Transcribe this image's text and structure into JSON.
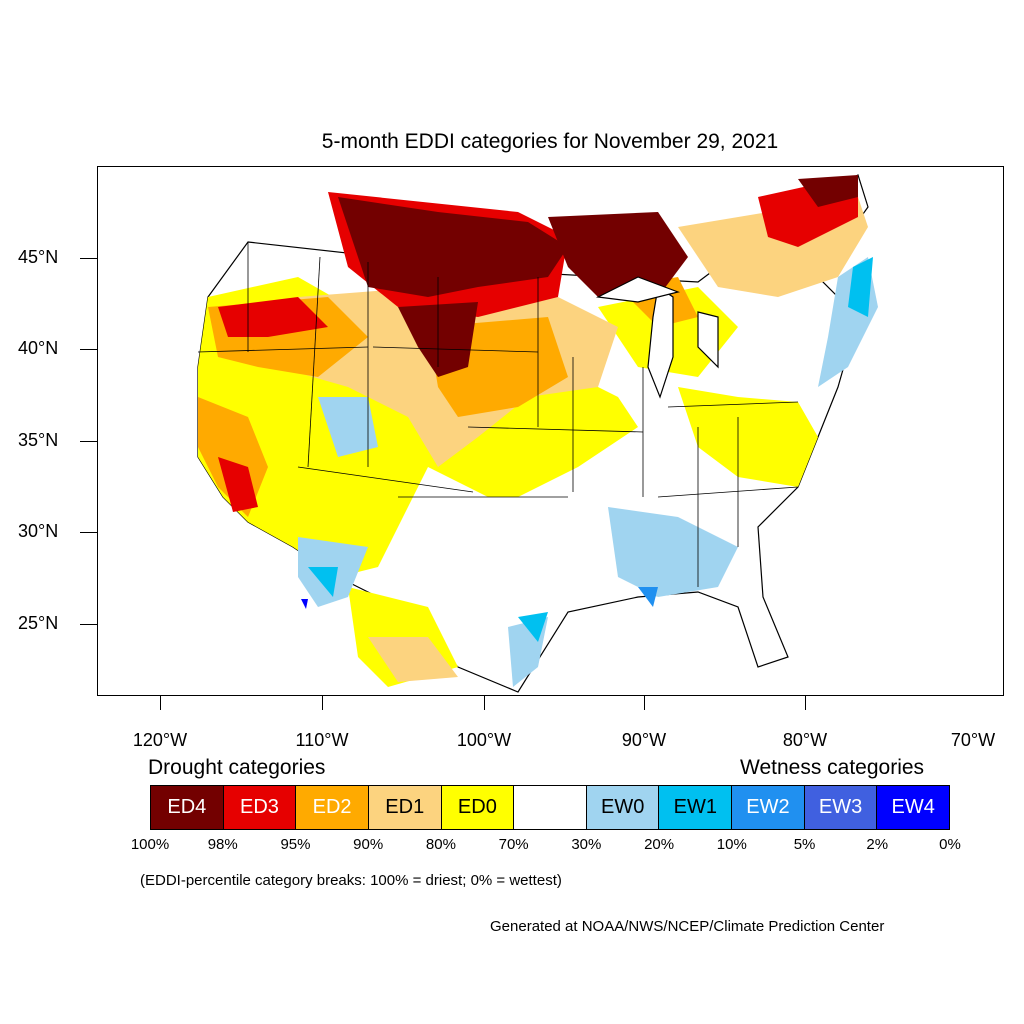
{
  "title": "5-month EDDI categories for November 29, 2021",
  "latitude_labels": [
    "45°N",
    "40°N",
    "35°N",
    "30°N",
    "25°N"
  ],
  "longitude_labels": [
    "120°W",
    "110°W",
    "100°W",
    "90°W",
    "80°W",
    "70°W"
  ],
  "legend": {
    "drought_heading": "Drought categories",
    "wetness_heading": "Wetness categories",
    "categories": [
      {
        "label": "ED4",
        "color": "#730000",
        "text_color": "#ffffff"
      },
      {
        "label": "ED3",
        "color": "#e60000",
        "text_color": "#ffffff"
      },
      {
        "label": "ED2",
        "color": "#ffaa00",
        "text_color": "#ffffff"
      },
      {
        "label": "ED1",
        "color": "#fcd37f",
        "text_color": "#000000"
      },
      {
        "label": "ED0",
        "color": "#ffff00",
        "text_color": "#000000"
      },
      {
        "label": "",
        "color": "#ffffff",
        "text_color": "#000000"
      },
      {
        "label": "EW0",
        "color": "#a0d4f0",
        "text_color": "#000000"
      },
      {
        "label": "EW1",
        "color": "#00c0f0",
        "text_color": "#000000"
      },
      {
        "label": "EW2",
        "color": "#2090f0",
        "text_color": "#ffffff"
      },
      {
        "label": "EW3",
        "color": "#4060e0",
        "text_color": "#ffffff"
      },
      {
        "label": "EW4",
        "color": "#0000ff",
        "text_color": "#ffffff"
      }
    ],
    "percentiles": [
      "100%",
      "98%",
      "95%",
      "90%",
      "80%",
      "70%",
      "30%",
      "20%",
      "10%",
      "5%",
      "2%",
      "0%"
    ]
  },
  "note": "(EDDI-percentile category breaks: 100% = driest; 0% = wettest)",
  "credit": "Generated at NOAA/NWS/NCEP/Climate Prediction Center"
}
